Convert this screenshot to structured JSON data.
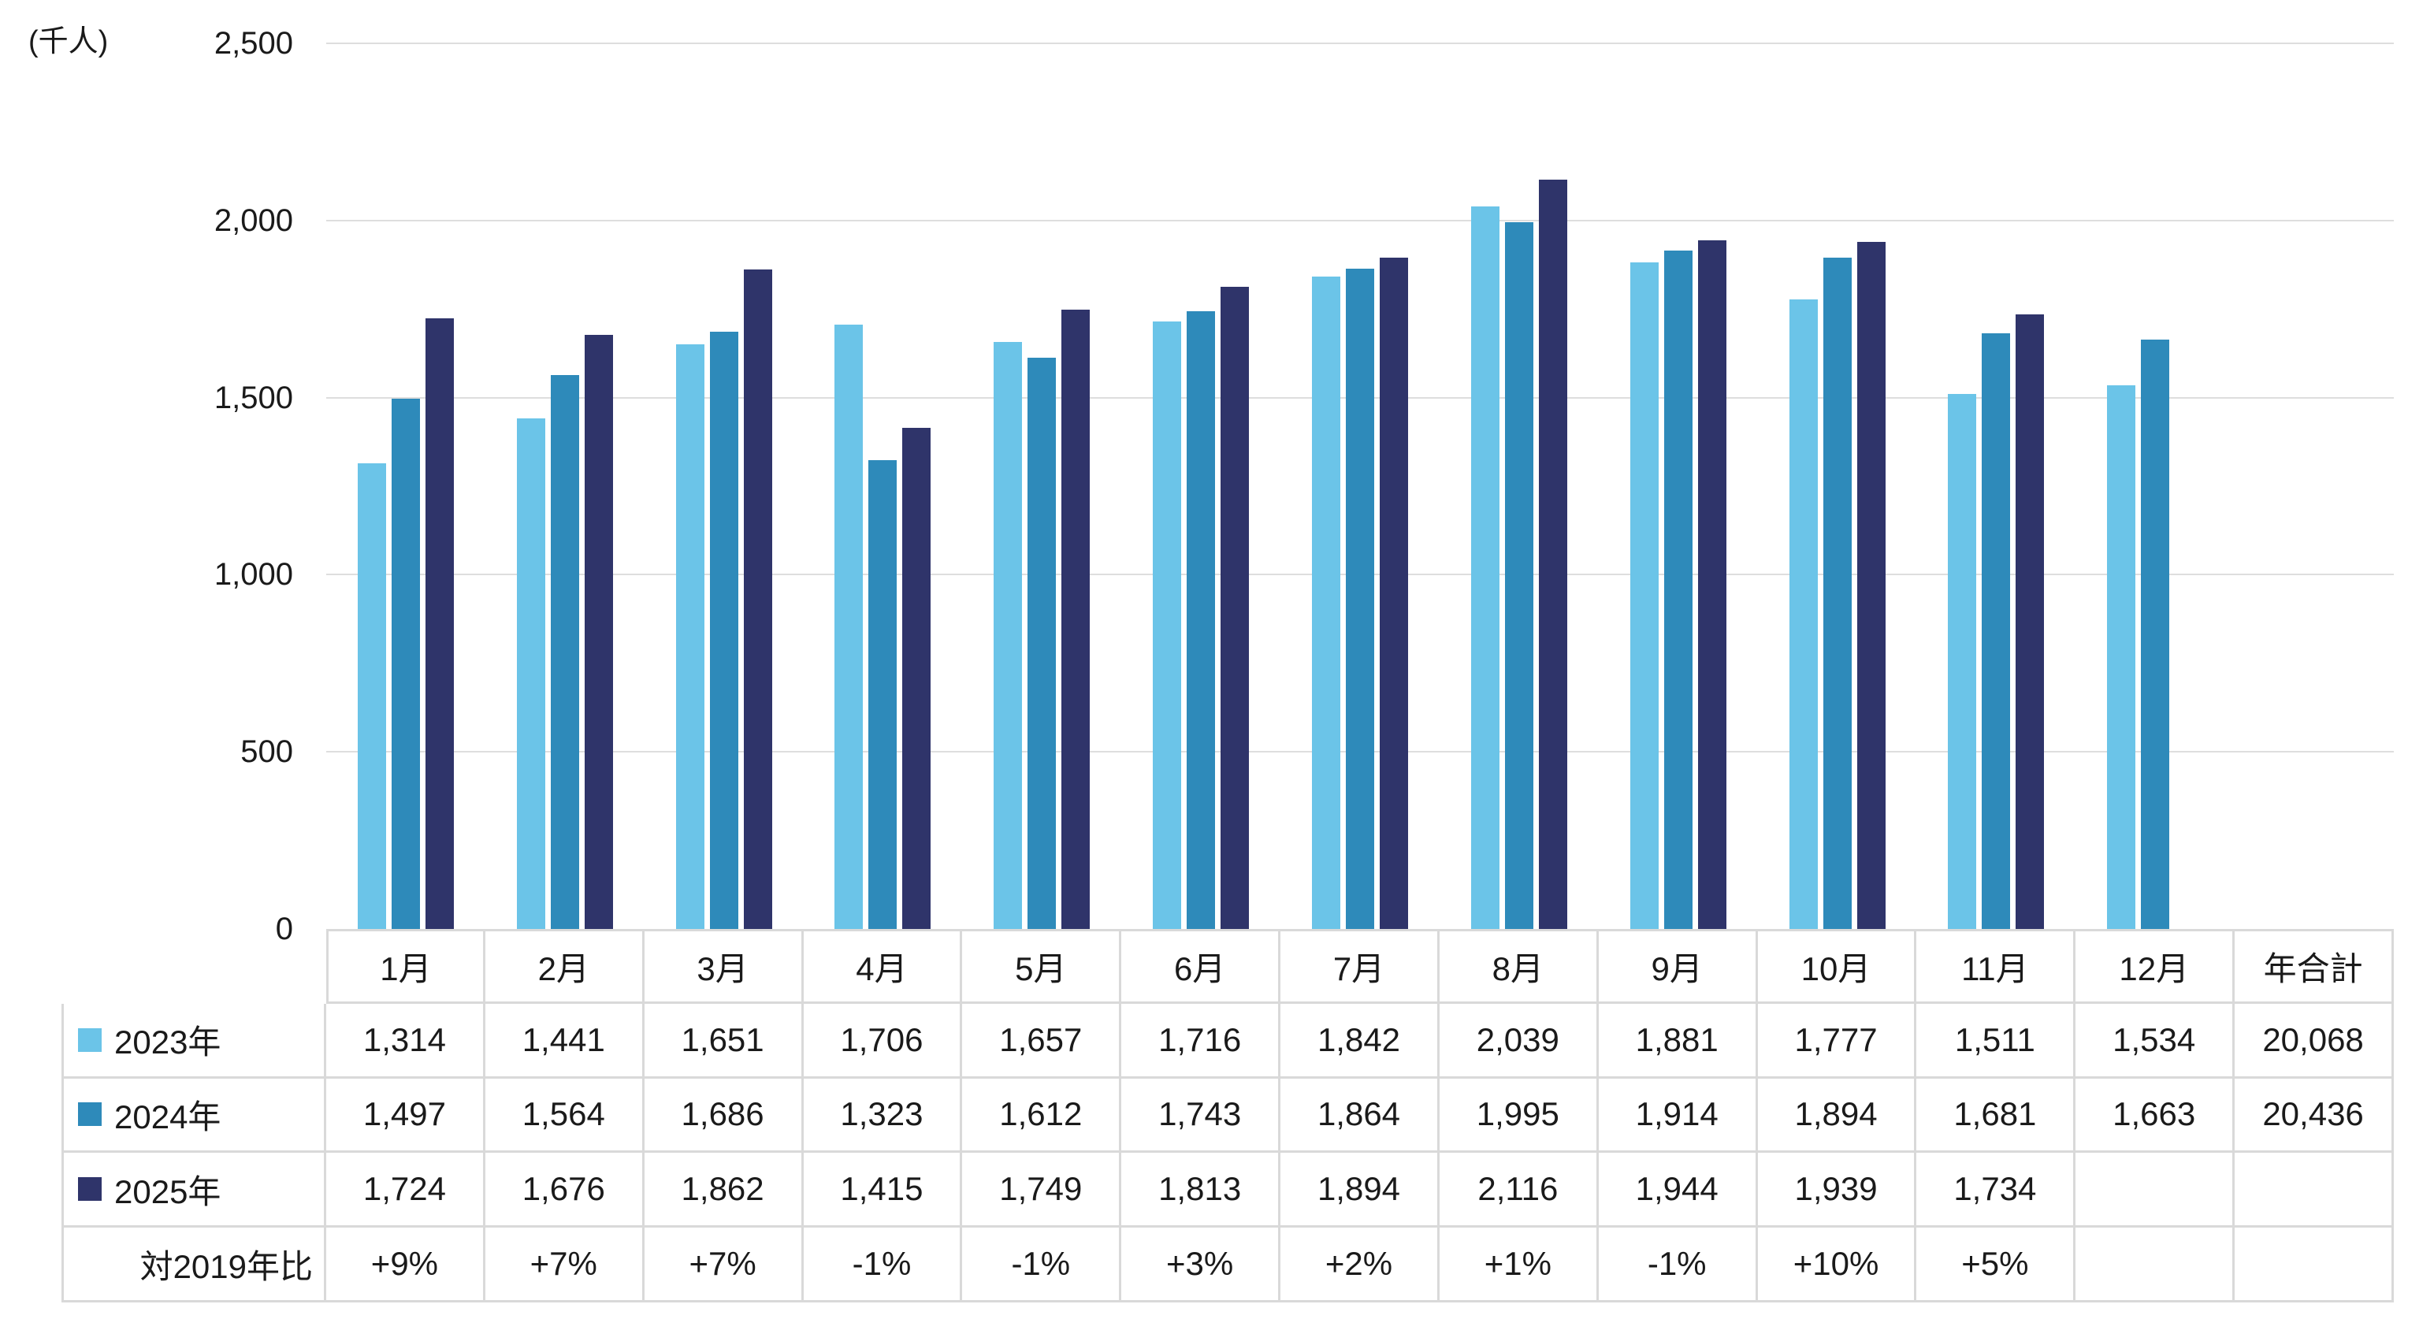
{
  "chart_data": {
    "type": "bar",
    "title": "",
    "unit_label": "(千人)",
    "categories": [
      "1月",
      "2月",
      "3月",
      "4月",
      "5月",
      "6月",
      "7月",
      "8月",
      "9月",
      "10月",
      "11月",
      "12月"
    ],
    "total_column_label": "年合計",
    "series": [
      {
        "name": "2023年",
        "color": "#6bc4e8",
        "values": [
          1314,
          1441,
          1651,
          1706,
          1657,
          1716,
          1842,
          2039,
          1881,
          1777,
          1511,
          1534
        ],
        "total": 20068
      },
      {
        "name": "2024年",
        "color": "#2e8aba",
        "values": [
          1497,
          1564,
          1686,
          1323,
          1612,
          1743,
          1864,
          1995,
          1914,
          1894,
          1681,
          1663
        ],
        "total": 20436
      },
      {
        "name": "2025年",
        "color": "#2f346a",
        "values": [
          1724,
          1676,
          1862,
          1415,
          1749,
          1813,
          1894,
          2116,
          1944,
          1939,
          1734
        ],
        "total": null
      }
    ],
    "comparison_row": {
      "label": "対2019年比",
      "values": [
        "+9%",
        "+7%",
        "+7%",
        "-1%",
        "-1%",
        "+3%",
        "+2%",
        "+1%",
        "-1%",
        "+10%",
        "+5%"
      ]
    },
    "y_axis": {
      "min": 0,
      "max": 2500,
      "tick_interval": 500,
      "ticks": [
        0,
        500,
        1000,
        1500,
        2000,
        2500
      ],
      "tick_labels": [
        "0",
        "500",
        "1,000",
        "1,500",
        "2,000",
        "2,500"
      ]
    },
    "grid": true,
    "legend_position": "table-left-keys",
    "colors": {
      "gridline": "#dedede",
      "table_border": "#d9d9d9",
      "text": "#1a1a1a"
    }
  }
}
